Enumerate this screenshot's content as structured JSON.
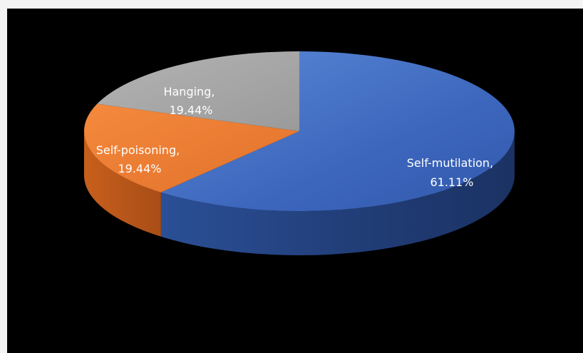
{
  "chart_data": {
    "type": "pie",
    "style": "3d",
    "slices": [
      {
        "name": "Self-mutilation",
        "value": 61.11,
        "label_line1": "Self-mutilation,",
        "label_line2": "61.11%",
        "color": "#4472c4"
      },
      {
        "name": "Self-poisoning",
        "value": 19.44,
        "label_line1": "Self-poisoning,",
        "label_line2": "19.44%",
        "color": "#ed7d31"
      },
      {
        "name": "Hanging",
        "value": 19.44,
        "label_line1": "Hanging,",
        "label_line2": "19.44%",
        "color": "#a5a5a5"
      }
    ],
    "background": "#000000"
  }
}
